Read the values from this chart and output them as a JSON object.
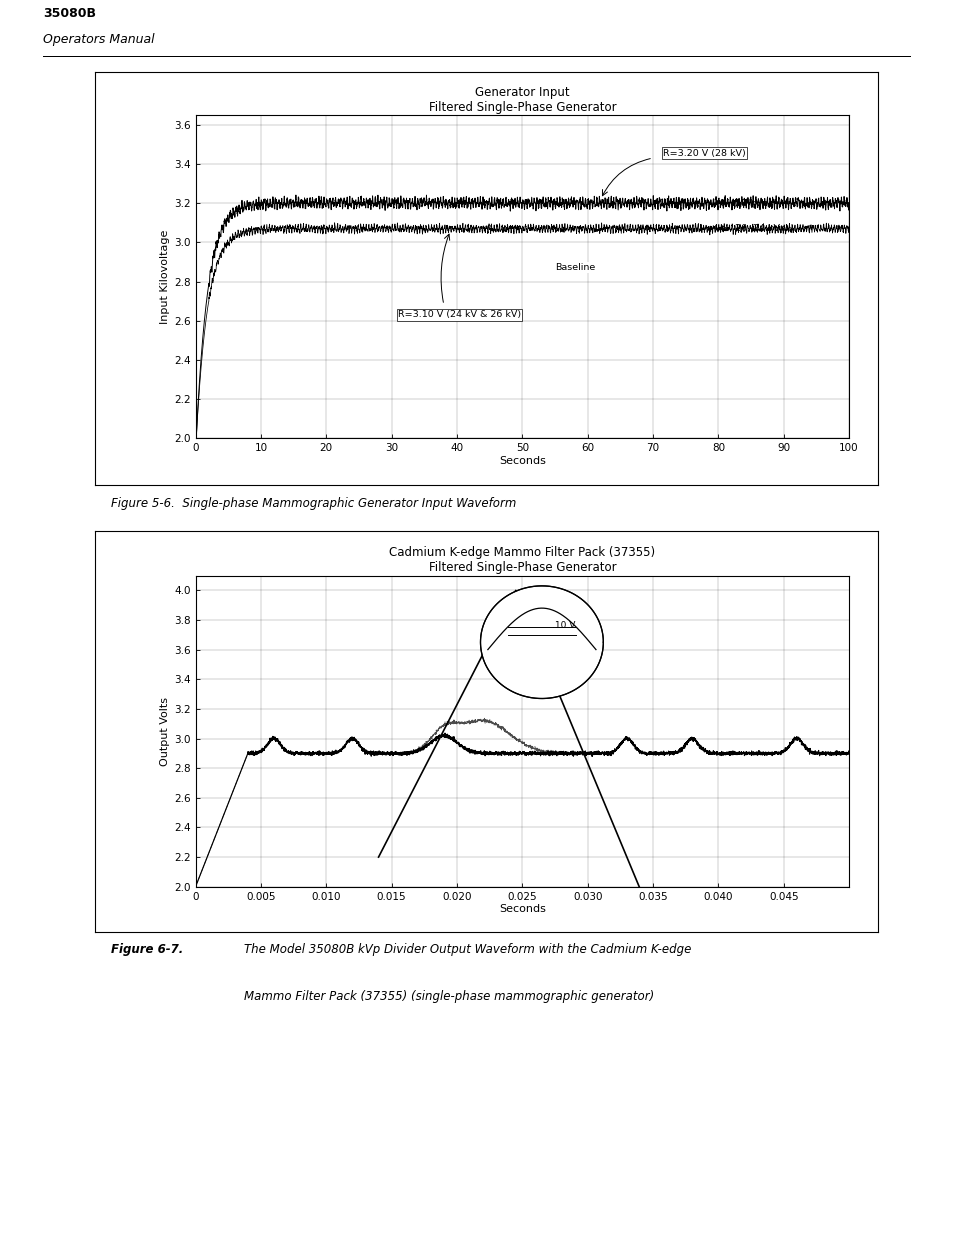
{
  "page_bg": "#ffffff",
  "header_title": "35080B",
  "header_subtitle": "Operators Manual",
  "chart1_title1": "Generator Input",
  "chart1_title2": "Filtered Single-Phase Generator",
  "chart1_xlabel": "Seconds",
  "chart1_ylabel": "Input Kilovoltage",
  "chart1_xlim": [
    0,
    100
  ],
  "chart1_ylim": [
    2.0,
    3.65
  ],
  "chart1_yticks": [
    2.0,
    2.2,
    2.4,
    2.6,
    2.8,
    3.0,
    3.2,
    3.4,
    3.6
  ],
  "chart1_xticks": [
    0,
    10,
    20,
    30,
    40,
    50,
    60,
    70,
    80,
    90,
    100
  ],
  "chart2_title1": "Cadmium K-edge Mammo Filter Pack (37355)",
  "chart2_title2": "Filtered Single-Phase Generator",
  "chart2_xlabel": "Seconds",
  "chart2_ylabel": "Output Volts",
  "chart2_xlim": [
    0,
    0.05
  ],
  "chart2_ylim": [
    2.0,
    4.1
  ],
  "chart2_yticks": [
    2.0,
    2.2,
    2.4,
    2.6,
    2.8,
    3.0,
    3.2,
    3.4,
    3.6,
    3.8,
    4.0
  ],
  "chart2_xticks": [
    0,
    0.005,
    0.01,
    0.015,
    0.02,
    0.025,
    0.03,
    0.035,
    0.04,
    0.045
  ],
  "fig1_caption": "Figure 5-6.  Single-phase Mammographic Generator Input Waveform",
  "fig2_caption_label": "Figure 6-7.",
  "fig2_caption_line1": "The Model 35080B kVp Divider Output Waveform with the Cadmium K-edge",
  "fig2_caption_line2": "Mammo Filter Pack (37355) (single-phase mammographic generator)"
}
